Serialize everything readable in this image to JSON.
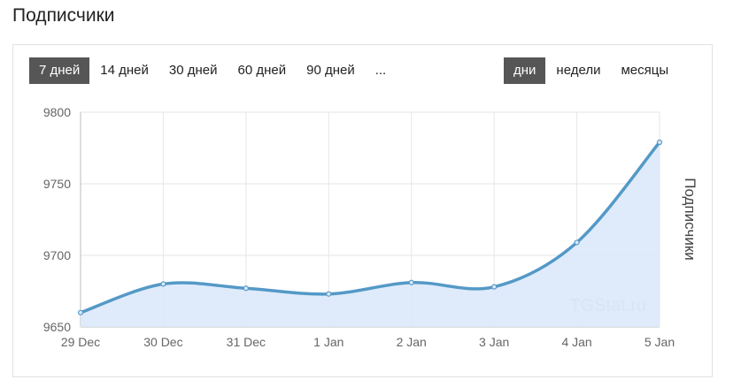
{
  "header": {
    "title": "Подписчики"
  },
  "ranges": {
    "items": [
      "7 дней",
      "14 дней",
      "30 дней",
      "60 дней",
      "90 дней",
      "..."
    ],
    "active": 0
  },
  "groupings": {
    "items": [
      "дни",
      "недели",
      "месяцы"
    ],
    "active": 0
  },
  "chart_data": {
    "type": "line",
    "y_label": "Подписчики",
    "watermark": "TGStat.ru",
    "categories": [
      "29 Dec",
      "30 Dec",
      "31 Dec",
      "1 Jan",
      "2 Jan",
      "3 Jan",
      "4 Jan",
      "5 Jan"
    ],
    "series": [
      {
        "name": "Подписчики",
        "color": "#5499c7",
        "fill": "#dce9fb",
        "values": [
          9660,
          9680,
          9677,
          9673,
          9681,
          9678,
          9709,
          9779
        ]
      }
    ],
    "ylim": [
      9650,
      9800
    ],
    "yticks": [
      9650,
      9700,
      9750,
      9800
    ],
    "grid": true
  }
}
